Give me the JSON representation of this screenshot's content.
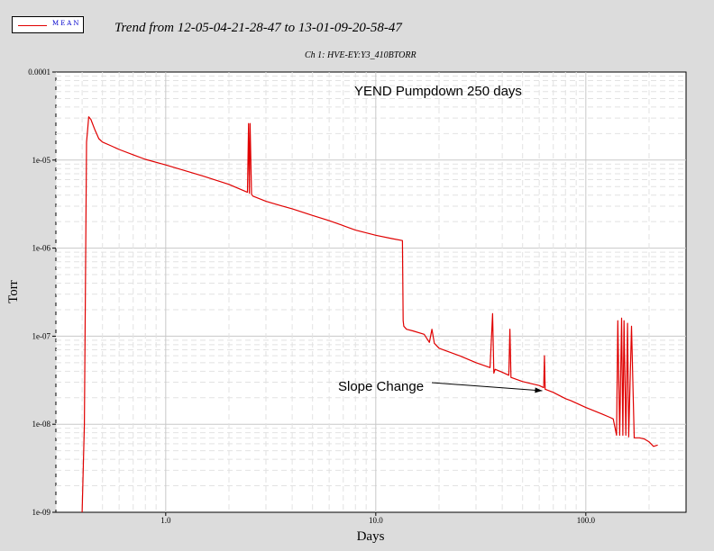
{
  "legend": {
    "label": "MEAN",
    "color": "#e00000"
  },
  "header": {
    "title": "Trend from 12-05-04-21-28-47 to 13-01-09-20-58-47",
    "subtitle": "Ch 1: HVE-EY:Y3_410BTORR"
  },
  "chart_data": {
    "type": "line",
    "title": "YEND Pumpdown 250 days",
    "xlabel": "Days",
    "ylabel": "Torr",
    "xscale": "log",
    "yscale": "log",
    "xlim": [
      0.3,
      300
    ],
    "ylim": [
      1e-09,
      0.0001
    ],
    "x_tick_labels": [
      {
        "value": 1,
        "label": "1.0"
      },
      {
        "value": 10,
        "label": "10.0"
      },
      {
        "value": 100,
        "label": "100.0"
      }
    ],
    "y_tick_labels": [
      {
        "value": 1e-09,
        "label": "1e-09"
      },
      {
        "value": 1e-08,
        "label": "1e-08"
      },
      {
        "value": 1e-07,
        "label": "1e-07"
      },
      {
        "value": 1e-06,
        "label": "1e-06"
      },
      {
        "value": 1e-05,
        "label": "1e-05"
      },
      {
        "value": 0.0001,
        "label": "0.0001"
      }
    ],
    "grid": true,
    "series": [
      {
        "name": "MEAN",
        "color": "#e00000",
        "x": [
          0.4,
          0.41,
          0.42,
          0.425,
          0.43,
          0.44,
          0.46,
          0.48,
          0.5,
          0.55,
          0.6,
          0.7,
          0.8,
          1.0,
          1.5,
          2.0,
          2.45,
          2.48,
          2.5,
          2.52,
          2.56,
          2.6,
          3.0,
          3.5,
          4.0,
          5.0,
          6.0,
          7.0,
          8.0,
          10.0,
          12.0,
          13.4,
          13.5,
          13.6,
          14.0,
          15.0,
          17.0,
          18.0,
          18.5,
          19.0,
          20.0,
          25.0,
          30.0,
          35.0,
          36.0,
          36.5,
          37.0,
          40.0,
          43.0,
          43.5,
          44.0,
          50.0,
          60.0,
          63.0,
          63.5,
          64.0,
          70.0,
          80.0,
          85.0,
          100.0,
          120.0,
          130.0,
          135.0,
          140.0,
          142.0,
          145.0,
          148.0,
          150.0,
          152.0,
          155.0,
          158.0,
          160.0,
          165.0,
          170.0,
          180.0,
          190.0,
          200.0,
          210.0,
          220.0
        ],
        "y": [
          1e-09,
          1e-08,
          1.6e-05,
          2.2e-05,
          3.1e-05,
          2.9e-05,
          2.2e-05,
          1.75e-05,
          1.6e-05,
          1.45e-05,
          1.32e-05,
          1.15e-05,
          1.02e-05,
          8.8e-06,
          6.6e-06,
          5.3e-06,
          4.3e-06,
          2.6e-05,
          4.2e-06,
          2.6e-05,
          4.1e-06,
          3.9e-06,
          3.4e-06,
          3.05e-06,
          2.8e-06,
          2.35e-06,
          2.05e-06,
          1.8e-06,
          1.6e-06,
          1.4e-06,
          1.28e-06,
          1.22e-06,
          1.5e-07,
          1.3e-07,
          1.2e-07,
          1.15e-07,
          1.05e-07,
          8.5e-08,
          1.2e-07,
          8.3e-08,
          7.3e-08,
          6e-08,
          5e-08,
          4.4e-08,
          1.8e-07,
          3.8e-08,
          4.2e-08,
          3.9e-08,
          3.6e-08,
          1.2e-07,
          3.4e-08,
          3.05e-08,
          2.75e-08,
          2.6e-08,
          6e-08,
          2.5e-08,
          2.3e-08,
          1.95e-08,
          1.85e-08,
          1.55e-08,
          1.3e-08,
          1.2e-08,
          1.15e-08,
          7.5e-09,
          1.5e-07,
          7.5e-09,
          1.6e-07,
          7.5e-09,
          1.5e-07,
          7.5e-09,
          1.4e-07,
          7.2e-09,
          1.3e-07,
          7e-09,
          7e-09,
          6.8e-09,
          6.3e-09,
          5.6e-09,
          5.8e-09
        ]
      }
    ],
    "annotations": [
      {
        "text": "Slope Change",
        "arrow_to": {
          "x": 62,
          "y": 2.4e-08
        }
      }
    ]
  }
}
